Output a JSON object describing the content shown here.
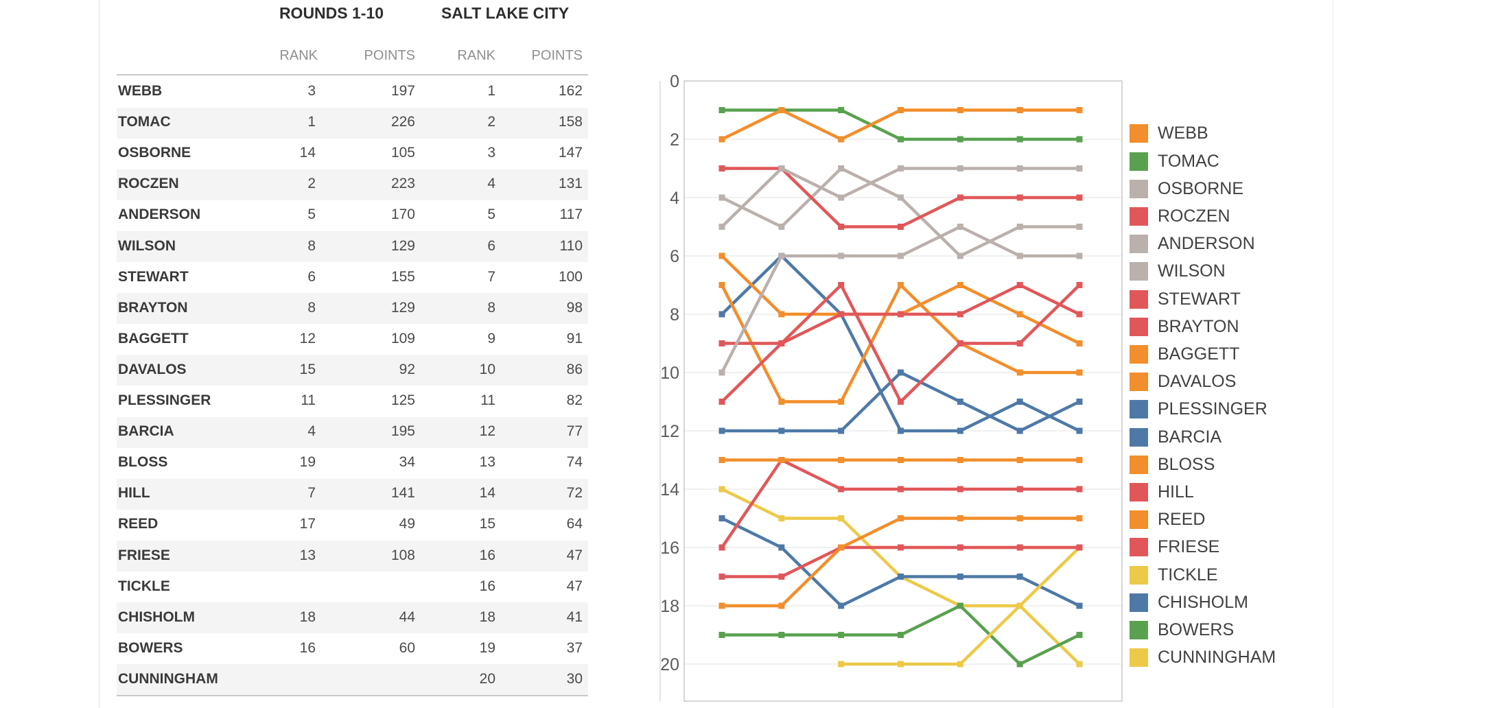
{
  "table": {
    "group_headers": [
      {
        "label": "ROUNDS 1-10"
      },
      {
        "label": "SALT LAKE CITY"
      }
    ],
    "col_headers": [
      {
        "label": "RANK"
      },
      {
        "label": "POINTS"
      },
      {
        "label": "RANK"
      },
      {
        "label": "POINTS"
      }
    ],
    "rows": [
      {
        "name": "WEBB",
        "rank1": "3",
        "points1": "197",
        "rank2": "1",
        "points2": "162"
      },
      {
        "name": "TOMAC",
        "rank1": "1",
        "points1": "226",
        "rank2": "2",
        "points2": "158"
      },
      {
        "name": "OSBORNE",
        "rank1": "14",
        "points1": "105",
        "rank2": "3",
        "points2": "147"
      },
      {
        "name": "ROCZEN",
        "rank1": "2",
        "points1": "223",
        "rank2": "4",
        "points2": "131"
      },
      {
        "name": "ANDERSON",
        "rank1": "5",
        "points1": "170",
        "rank2": "5",
        "points2": "117"
      },
      {
        "name": "WILSON",
        "rank1": "8",
        "points1": "129",
        "rank2": "6",
        "points2": "110"
      },
      {
        "name": "STEWART",
        "rank1": "6",
        "points1": "155",
        "rank2": "7",
        "points2": "100"
      },
      {
        "name": "BRAYTON",
        "rank1": "8",
        "points1": "129",
        "rank2": "8",
        "points2": "98"
      },
      {
        "name": "BAGGETT",
        "rank1": "12",
        "points1": "109",
        "rank2": "9",
        "points2": "91"
      },
      {
        "name": "DAVALOS",
        "rank1": "15",
        "points1": "92",
        "rank2": "10",
        "points2": "86"
      },
      {
        "name": "PLESSINGER",
        "rank1": "11",
        "points1": "125",
        "rank2": "11",
        "points2": "82"
      },
      {
        "name": "BARCIA",
        "rank1": "4",
        "points1": "195",
        "rank2": "12",
        "points2": "77"
      },
      {
        "name": "BLOSS",
        "rank1": "19",
        "points1": "34",
        "rank2": "13",
        "points2": "74"
      },
      {
        "name": "HILL",
        "rank1": "7",
        "points1": "141",
        "rank2": "14",
        "points2": "72"
      },
      {
        "name": "REED",
        "rank1": "17",
        "points1": "49",
        "rank2": "15",
        "points2": "64"
      },
      {
        "name": "FRIESE",
        "rank1": "13",
        "points1": "108",
        "rank2": "16",
        "points2": "47"
      },
      {
        "name": "TICKLE",
        "rank1": "",
        "points1": "",
        "rank2": "16",
        "points2": "47"
      },
      {
        "name": "CHISHOLM",
        "rank1": "18",
        "points1": "44",
        "rank2": "18",
        "points2": "41"
      },
      {
        "name": "BOWERS",
        "rank1": "16",
        "points1": "60",
        "rank2": "19",
        "points2": "37"
      },
      {
        "name": "CUNNINGHAM",
        "rank1": "",
        "points1": "",
        "rank2": "20",
        "points2": "30"
      }
    ]
  },
  "chart_data": {
    "type": "line",
    "subtype": "bump-chart-rank-by-round",
    "x": [
      1,
      2,
      3,
      4,
      5,
      6,
      7
    ],
    "xlabel": "",
    "ylabel": "",
    "y_ticks": [
      0,
      2,
      4,
      6,
      8,
      10,
      12,
      14,
      16,
      18,
      20
    ],
    "ylim": [
      0,
      21.3
    ],
    "y_inverted_rank_axis": true,
    "grid": "horizontal even ranks",
    "legend_position": "right",
    "series": [
      {
        "name": "WEBB",
        "color": "#f28e2b",
        "values": [
          2,
          1,
          2,
          1,
          1,
          1,
          1
        ]
      },
      {
        "name": "TOMAC",
        "color": "#59a14f",
        "values": [
          1,
          1,
          1,
          2,
          2,
          2,
          2
        ]
      },
      {
        "name": "OSBORNE",
        "color": "#bab0ac",
        "values": [
          5,
          3,
          4,
          3,
          3,
          3,
          3
        ]
      },
      {
        "name": "ROCZEN",
        "color": "#e15759",
        "values": [
          3,
          3,
          5,
          5,
          4,
          4,
          4
        ]
      },
      {
        "name": "ANDERSON",
        "color": "#bab0ac",
        "values": [
          4,
          5,
          3,
          4,
          6,
          5,
          5
        ]
      },
      {
        "name": "WILSON",
        "color": "#bab0ac",
        "values": [
          10,
          6,
          6,
          6,
          5,
          6,
          6
        ]
      },
      {
        "name": "STEWART",
        "color": "#e15759",
        "values": [
          9,
          9,
          7,
          11,
          9,
          9,
          7
        ]
      },
      {
        "name": "BRAYTON",
        "color": "#e15759",
        "values": [
          11,
          9,
          8,
          8,
          8,
          7,
          8
        ]
      },
      {
        "name": "BAGGETT",
        "color": "#f28e2b",
        "values": [
          6,
          8,
          8,
          8,
          7,
          8,
          9
        ]
      },
      {
        "name": "DAVALOS",
        "color": "#f28e2b",
        "values": [
          7,
          11,
          11,
          7,
          9,
          10,
          10
        ]
      },
      {
        "name": "PLESSINGER",
        "color": "#4e79a7",
        "values": [
          12,
          12,
          12,
          10,
          11,
          12,
          11
        ]
      },
      {
        "name": "BARCIA",
        "color": "#4e79a7",
        "values": [
          8,
          6,
          8,
          12,
          12,
          11,
          12
        ]
      },
      {
        "name": "BLOSS",
        "color": "#f28e2b",
        "values": [
          13,
          13,
          13,
          13,
          13,
          13,
          13
        ]
      },
      {
        "name": "HILL",
        "color": "#e15759",
        "values": [
          16,
          13,
          14,
          14,
          14,
          14,
          14
        ]
      },
      {
        "name": "REED",
        "color": "#f28e2b",
        "values": [
          18,
          18,
          16,
          15,
          15,
          15,
          15
        ]
      },
      {
        "name": "FRIESE",
        "color": "#e15759",
        "values": [
          17,
          17,
          16,
          16,
          16,
          16,
          16
        ]
      },
      {
        "name": "TICKLE",
        "color": "#edc948",
        "values": [
          null,
          null,
          20,
          20,
          20,
          18,
          16
        ]
      },
      {
        "name": "CHISHOLM",
        "color": "#4e79a7",
        "values": [
          15,
          16,
          18,
          17,
          17,
          17,
          18
        ]
      },
      {
        "name": "BOWERS",
        "color": "#59a14f",
        "values": [
          19,
          19,
          19,
          19,
          18,
          20,
          19
        ]
      },
      {
        "name": "CUNNINGHAM",
        "color": "#edc948",
        "values": [
          14,
          15,
          15,
          17,
          18,
          18,
          20
        ]
      }
    ]
  },
  "colors": {
    "orange": "#f28e2b",
    "green": "#59a14f",
    "gray": "#bab0ac",
    "red": "#e15759",
    "blue": "#4e79a7",
    "yellow": "#edc948",
    "grid": "#ebebeb",
    "axis_border": "#c8c8c8",
    "stripe": "#f4f4f4",
    "rule": "#c9c9c9"
  }
}
